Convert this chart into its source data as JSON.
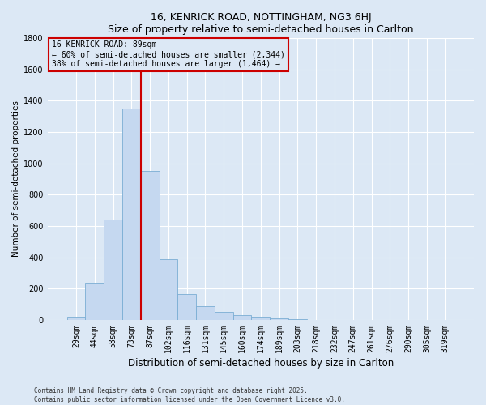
{
  "title1": "16, KENRICK ROAD, NOTTINGHAM, NG3 6HJ",
  "title2": "Size of property relative to semi-detached houses in Carlton",
  "xlabel": "Distribution of semi-detached houses by size in Carlton",
  "ylabel": "Number of semi-detached properties",
  "categories": [
    "29sqm",
    "44sqm",
    "58sqm",
    "73sqm",
    "87sqm",
    "102sqm",
    "116sqm",
    "131sqm",
    "145sqm",
    "160sqm",
    "174sqm",
    "189sqm",
    "203sqm",
    "218sqm",
    "232sqm",
    "247sqm",
    "261sqm",
    "276sqm",
    "290sqm",
    "305sqm",
    "319sqm"
  ],
  "values": [
    20,
    230,
    640,
    1350,
    950,
    390,
    165,
    90,
    50,
    30,
    20,
    10,
    4,
    2,
    1,
    1,
    0,
    0,
    0,
    0,
    0
  ],
  "bar_color": "#c5d8f0",
  "bar_edge_color": "#7aadd4",
  "vline_color": "#cc0000",
  "vline_index": 4,
  "annotation_title": "16 KENRICK ROAD: 89sqm",
  "annotation_line1": "← 60% of semi-detached houses are smaller (2,344)",
  "annotation_line2": "38% of semi-detached houses are larger (1,464) →",
  "ylim_max": 1800,
  "yticks": [
    0,
    200,
    400,
    600,
    800,
    1000,
    1200,
    1400,
    1600,
    1800
  ],
  "bg_color": "#dce8f5",
  "plot_bg_color": "#dce8f5",
  "grid_color": "#ffffff",
  "footer1": "Contains HM Land Registry data © Crown copyright and database right 2025.",
  "footer2": "Contains public sector information licensed under the Open Government Licence v3.0."
}
